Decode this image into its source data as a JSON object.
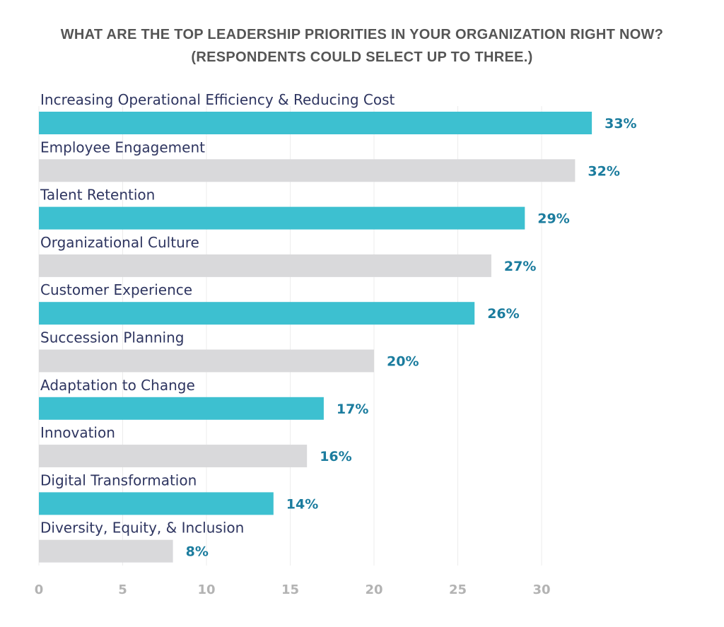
{
  "title_line1": "WHAT ARE THE TOP LEADERSHIP PRIORITIES IN YOUR ORGANIZATION RIGHT NOW?",
  "title_line2": "(RESPONDENTS COULD SELECT UP TO THREE.)",
  "colors": {
    "accent": "#3dc0d0",
    "neutral": "#d9d9db",
    "value_text": "#1b7c9e",
    "label_text": "#2e3560",
    "tick_text": "#b3b3b3",
    "grid": "#ececec"
  },
  "chart_data": {
    "type": "bar",
    "orientation": "horizontal",
    "title": "WHAT ARE THE TOP LEADERSHIP PRIORITIES IN YOUR ORGANIZATION RIGHT NOW? (RESPONDENTS COULD SELECT UP TO THREE.)",
    "categories": [
      "Increasing Operational Efficiency & Reducing Cost",
      "Employee Engagement",
      "Talent Retention",
      "Organizational Culture",
      "Customer Experience",
      "Succession Planning",
      "Adaptation to Change",
      "Innovation",
      "Digital Transformation",
      "Diversity, Equity, & Inclusion"
    ],
    "values": [
      33,
      32,
      29,
      27,
      26,
      20,
      17,
      16,
      14,
      8
    ],
    "value_labels": [
      "33%",
      "32%",
      "29%",
      "27%",
      "26%",
      "20%",
      "17%",
      "16%",
      "14%",
      "8%"
    ],
    "bar_colors": [
      "#3dc0d0",
      "#d9d9db",
      "#3dc0d0",
      "#d9d9db",
      "#3dc0d0",
      "#d9d9db",
      "#3dc0d0",
      "#d9d9db",
      "#3dc0d0",
      "#d9d9db"
    ],
    "xticks": [
      0,
      5,
      10,
      15,
      20,
      25,
      30
    ],
    "xlim": [
      0,
      35
    ],
    "grid": true,
    "xlabel": "",
    "ylabel": ""
  }
}
